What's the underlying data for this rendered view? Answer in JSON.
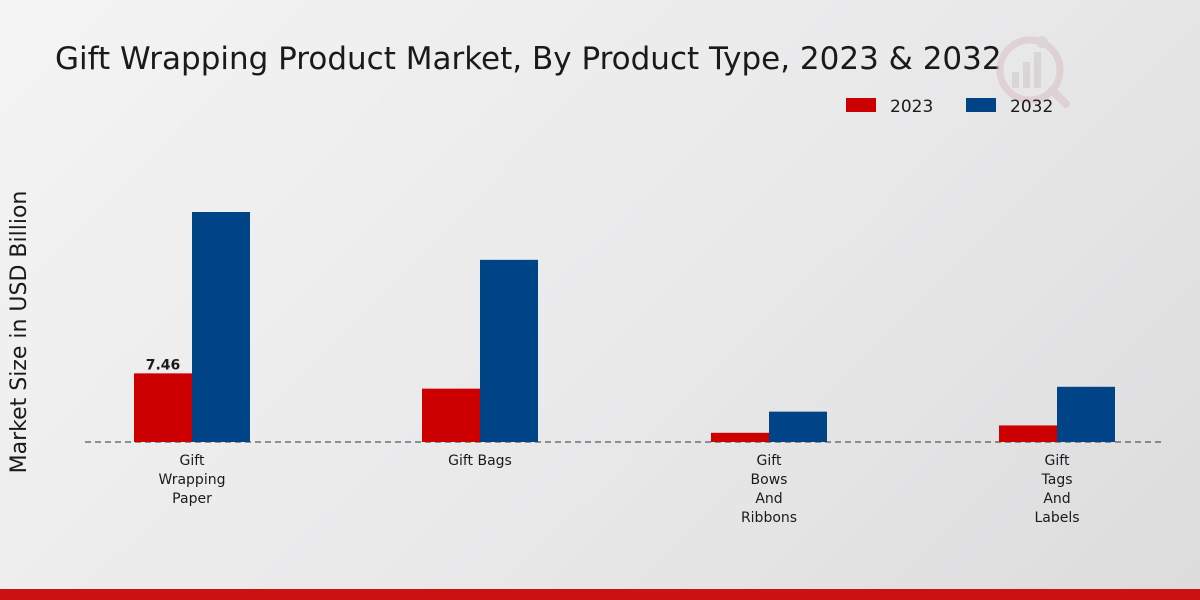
{
  "chart_data": {
    "type": "bar",
    "title": "Gift Wrapping Product Market, By Product Type, 2023 & 2032",
    "xlabel": "",
    "ylabel": "Market Size in USD Billion",
    "categories": [
      "Gift\nWrapping\nPaper",
      "Gift Bags",
      "Gift\nBows\nAnd\nRibbons",
      "Gift\nTags\nAnd\nLabels"
    ],
    "series": [
      {
        "name": "2023",
        "color": "#cc0000",
        "values": [
          7.46,
          5.8,
          1.0,
          1.8
        ]
      },
      {
        "name": "2032",
        "color": "#004488",
        "values": [
          25.0,
          19.8,
          3.3,
          6.0
        ]
      }
    ],
    "data_labels": [
      {
        "series": "2023",
        "category_index": 0,
        "text": "7.46"
      }
    ],
    "ylim": [
      0,
      35
    ],
    "grid": false,
    "legend_position": "top-right",
    "baseline_style": "dashed"
  },
  "colors": {
    "accent_bar": "#cc1111",
    "logo": "#d9c7c9"
  }
}
